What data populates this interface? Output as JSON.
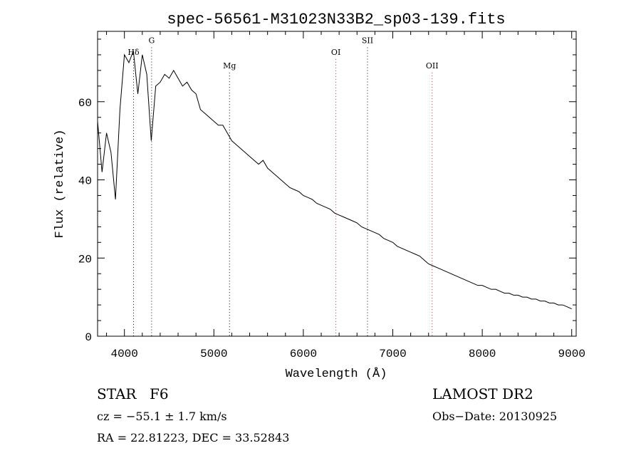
{
  "chart_data": {
    "type": "line",
    "title": "spec-56561-M31023N33B2_sp03-139.fits",
    "xlabel": "Wavelength (Å)",
    "ylabel": "Flux (relative)",
    "xlim": [
      3700,
      9050
    ],
    "ylim": [
      0,
      78
    ],
    "xticks": [
      4000,
      5000,
      6000,
      7000,
      8000,
      9000
    ],
    "yticks": [
      0,
      20,
      40,
      60
    ],
    "grid": false,
    "line_color": "#000000",
    "marker_color": "#000000",
    "series": [
      {
        "x": [
          3700,
          3750,
          3800,
          3850,
          3900,
          3950,
          4000,
          4050,
          4100,
          4150,
          4200,
          4250,
          4300,
          4350,
          4400,
          4450,
          4500,
          4550,
          4600,
          4650,
          4700,
          4750,
          4800,
          4850,
          4900,
          4950,
          5000,
          5050,
          5100,
          5150,
          5200,
          5250,
          5300,
          5350,
          5400,
          5450,
          5500,
          5550,
          5600,
          5650,
          5700,
          5750,
          5800,
          5850,
          5900,
          5950,
          6000,
          6050,
          6100,
          6150,
          6200,
          6250,
          6300,
          6350,
          6400,
          6450,
          6500,
          6550,
          6600,
          6650,
          6700,
          6750,
          6800,
          6850,
          6900,
          6950,
          7000,
          7050,
          7100,
          7150,
          7200,
          7250,
          7300,
          7350,
          7400,
          7450,
          7500,
          7550,
          7600,
          7650,
          7700,
          7750,
          7800,
          7850,
          7900,
          7950,
          8000,
          8050,
          8100,
          8150,
          8200,
          8250,
          8300,
          8350,
          8400,
          8450,
          8500,
          8550,
          8600,
          8650,
          8700,
          8750,
          8800,
          8850,
          8900,
          8950,
          9000
        ],
        "values": [
          55,
          42,
          52,
          47,
          35,
          58,
          72,
          70,
          73,
          62,
          72,
          67,
          50,
          64,
          65,
          67,
          66,
          68,
          66,
          64,
          65,
          63,
          62,
          58,
          57,
          56,
          55,
          54,
          54,
          52,
          50,
          49,
          48,
          47,
          46,
          45,
          44,
          45,
          43,
          42,
          41,
          40,
          39,
          38,
          37.5,
          37,
          36,
          35.5,
          35,
          34,
          33.5,
          33,
          32.5,
          31.5,
          31,
          30.5,
          30,
          29.5,
          29,
          28,
          27.5,
          27,
          26.5,
          26,
          25,
          24.5,
          24,
          23,
          22.5,
          22,
          21.5,
          21,
          20.5,
          19.5,
          18.5,
          18,
          17.5,
          17,
          16.5,
          16,
          15.5,
          15,
          14.5,
          14,
          13.5,
          13,
          13,
          12.5,
          12,
          12,
          11.5,
          11,
          11,
          10.5,
          10.5,
          10,
          10,
          9.5,
          9.5,
          9,
          9,
          8.5,
          8.5,
          8,
          8,
          7.5,
          7
        ]
      }
    ],
    "lines": [
      {
        "label": "Hδ",
        "x": 4102,
        "label_flux": 72,
        "color": "#000000"
      },
      {
        "label": "G",
        "x": 4304,
        "label_flux": 75,
        "color": "#000000"
      },
      {
        "label": "Mg",
        "x": 5175,
        "label_flux": 68.5,
        "color": "#000000"
      },
      {
        "label": "OI",
        "x": 6364,
        "label_flux": 72,
        "color": "#cc3333"
      },
      {
        "label": "SII",
        "x": 6717,
        "label_flux": 75,
        "color": "#000000"
      },
      {
        "label": "OII",
        "x": 7440,
        "label_flux": 68.5,
        "color": "#cc3333"
      }
    ]
  },
  "info": {
    "object_class": "STAR",
    "subclass": "F6",
    "survey": "LAMOST DR2",
    "cz": "cz = −55.1 ± 1.7 km/s",
    "obs_date": "Obs−Date: 20130925",
    "coords": "RA =  22.81223, DEC =  33.52843"
  }
}
